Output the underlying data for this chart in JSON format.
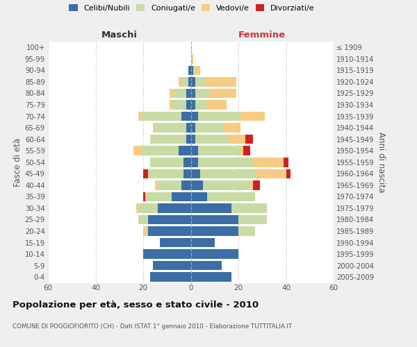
{
  "age_groups": [
    "0-4",
    "5-9",
    "10-14",
    "15-19",
    "20-24",
    "25-29",
    "30-34",
    "35-39",
    "40-44",
    "45-49",
    "50-54",
    "55-59",
    "60-64",
    "65-69",
    "70-74",
    "75-79",
    "80-84",
    "85-89",
    "90-94",
    "95-99",
    "100+"
  ],
  "birth_years": [
    "2005-2009",
    "2000-2004",
    "1995-1999",
    "1990-1994",
    "1985-1989",
    "1980-1984",
    "1975-1979",
    "1970-1974",
    "1965-1969",
    "1960-1964",
    "1955-1959",
    "1950-1954",
    "1945-1949",
    "1940-1944",
    "1935-1939",
    "1930-1934",
    "1925-1929",
    "1920-1924",
    "1915-1919",
    "1910-1914",
    "≤ 1909"
  ],
  "colors": {
    "celibi": "#3a6ea5",
    "coniugati": "#c8dba4",
    "vedovi": "#f7cc82",
    "divorziati": "#cc2222"
  },
  "maschi": {
    "celibi": [
      17,
      16,
      20,
      13,
      18,
      18,
      14,
      8,
      4,
      3,
      3,
      5,
      2,
      2,
      4,
      2,
      2,
      1,
      1,
      0,
      0
    ],
    "coniugati": [
      0,
      0,
      0,
      0,
      1,
      4,
      8,
      11,
      10,
      15,
      14,
      16,
      15,
      13,
      17,
      6,
      5,
      3,
      0,
      0,
      0
    ],
    "vedovi": [
      0,
      0,
      0,
      0,
      1,
      0,
      1,
      0,
      1,
      0,
      0,
      3,
      0,
      1,
      1,
      1,
      2,
      1,
      0,
      0,
      0
    ],
    "divorziati": [
      0,
      0,
      0,
      0,
      0,
      0,
      0,
      1,
      0,
      2,
      0,
      0,
      0,
      0,
      0,
      0,
      0,
      0,
      0,
      0,
      0
    ]
  },
  "femmine": {
    "celibi": [
      17,
      13,
      20,
      10,
      20,
      20,
      17,
      7,
      5,
      4,
      3,
      3,
      2,
      2,
      3,
      2,
      2,
      2,
      1,
      0,
      0
    ],
    "coniugati": [
      0,
      0,
      0,
      0,
      7,
      12,
      15,
      20,
      20,
      23,
      23,
      18,
      14,
      12,
      18,
      5,
      6,
      4,
      1,
      0,
      0
    ],
    "vedovi": [
      0,
      0,
      0,
      0,
      0,
      0,
      0,
      0,
      1,
      13,
      13,
      1,
      7,
      7,
      10,
      8,
      11,
      13,
      2,
      1,
      0
    ],
    "divorziati": [
      0,
      0,
      0,
      0,
      0,
      0,
      0,
      0,
      3,
      2,
      2,
      3,
      3,
      0,
      0,
      0,
      0,
      0,
      0,
      0,
      0
    ]
  },
  "xlim": 60,
  "xticks": [
    -60,
    -40,
    -20,
    0,
    20,
    40,
    60
  ],
  "title": "Popolazione per età, sesso e stato civile - 2010",
  "subtitle": "COMUNE DI POGGIOFIORITO (CH) - Dati ISTAT 1° gennaio 2010 - Elaborazione TUTTITALIA.IT",
  "xlabel_left": "Maschi",
  "xlabel_right": "Femmine",
  "ylabel_left": "Fasce di età",
  "ylabel_right": "Anni di nascita",
  "legend_labels": [
    "Celibi/Nubili",
    "Coniugati/e",
    "Vedovi/e",
    "Divorziati/e"
  ],
  "bg_color": "#efefef",
  "plot_bg": "#ffffff",
  "grid_color": "#cccccc"
}
